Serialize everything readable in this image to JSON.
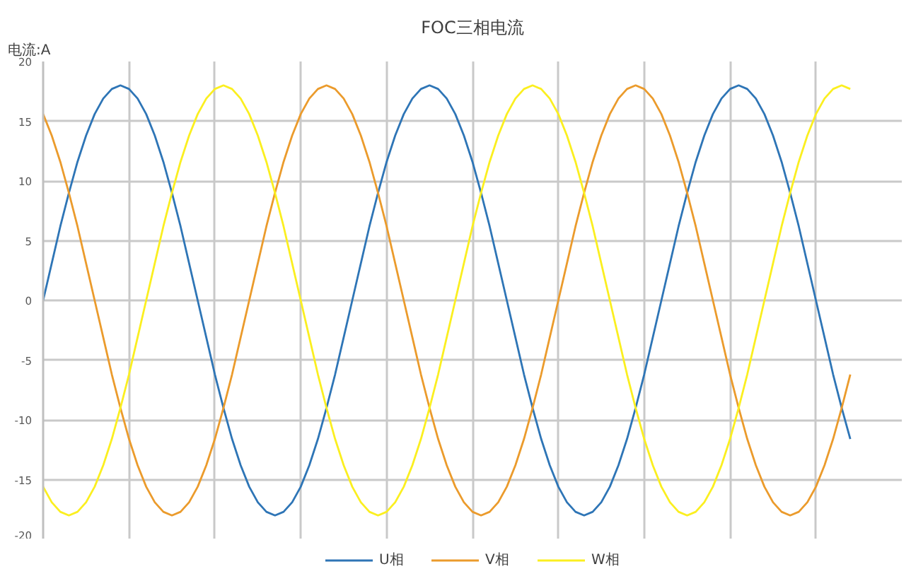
{
  "chart_data": {
    "type": "line",
    "title": "FOC三相电流",
    "ylabel": "电流:A",
    "categories": [
      null,
      null,
      null,
      null,
      null,
      null,
      null,
      null,
      null,
      null,
      null,
      null,
      null,
      null,
      null,
      null,
      null,
      null,
      null,
      null,
      null,
      null,
      null,
      null,
      null,
      null,
      null,
      null,
      null,
      null,
      null,
      null,
      null,
      null,
      null,
      null,
      null,
      null,
      null,
      null,
      null,
      null,
      null,
      null,
      null,
      null,
      null,
      null,
      null,
      null,
      null,
      null,
      null,
      null,
      null,
      null,
      null,
      null,
      null,
      null,
      null,
      null,
      null,
      null,
      null,
      null,
      null,
      null,
      null,
      null,
      null,
      null,
      null,
      null,
      null,
      null,
      null,
      null,
      null,
      null,
      null,
      null,
      null,
      null,
      null,
      null,
      null,
      null,
      null,
      null,
      null,
      null,
      null,
      null,
      null,
      null,
      null,
      null,
      null,
      null,
      null
    ],
    "series": [
      {
        "name": "U相",
        "color": "#2e75b6",
        "values": [
          0,
          3.1,
          6.2,
          9,
          11.6,
          13.8,
          15.6,
          16.9,
          17.7,
          18,
          17.7,
          16.9,
          15.6,
          13.8,
          11.6,
          9,
          6.2,
          3.1,
          0,
          -3.1,
          -6.2,
          -9,
          -11.6,
          -13.8,
          -15.6,
          -16.9,
          -17.7,
          -18,
          -17.7,
          -16.9,
          -15.6,
          -13.8,
          -11.6,
          -9,
          -6.2,
          -3.1,
          0,
          3.1,
          6.2,
          9,
          11.6,
          13.8,
          15.6,
          16.9,
          17.7,
          18,
          17.7,
          16.9,
          15.6,
          13.8,
          11.6,
          9,
          6.2,
          3.1,
          0,
          -3.1,
          -6.2,
          -9,
          -11.6,
          -13.8,
          -15.6,
          -16.9,
          -17.7,
          -18,
          -17.7,
          -16.9,
          -15.6,
          -13.8,
          -11.6,
          -9,
          -6.2,
          -3.1,
          0,
          3.1,
          6.2,
          9,
          11.6,
          13.8,
          15.6,
          16.9,
          17.7,
          18,
          17.7,
          16.9,
          15.6,
          13.8,
          11.6,
          9,
          6.2,
          3.1,
          0,
          -3.1,
          -6.2,
          -9,
          -11.6,
          null,
          null,
          null,
          null,
          null,
          null
        ]
      },
      {
        "name": "V相",
        "color": "#eb9b2c",
        "values": [
          15.6,
          13.8,
          11.6,
          9,
          6.2,
          3.1,
          0,
          -3.1,
          -6.2,
          -9,
          -11.6,
          -13.8,
          -15.6,
          -16.9,
          -17.7,
          -18,
          -17.7,
          -16.9,
          -15.6,
          -13.8,
          -11.6,
          -9,
          -6.2,
          -3.1,
          0,
          3.1,
          6.2,
          9,
          11.6,
          13.8,
          15.6,
          16.9,
          17.7,
          18,
          17.7,
          16.9,
          15.6,
          13.8,
          11.6,
          9,
          6.2,
          3.1,
          0,
          -3.1,
          -6.2,
          -9,
          -11.6,
          -13.8,
          -15.6,
          -16.9,
          -17.7,
          -18,
          -17.7,
          -16.9,
          -15.6,
          -13.8,
          -11.6,
          -9,
          -6.2,
          -3.1,
          0,
          3.1,
          6.2,
          9,
          11.6,
          13.8,
          15.6,
          16.9,
          17.7,
          18,
          17.7,
          16.9,
          15.6,
          13.8,
          11.6,
          9,
          6.2,
          3.1,
          0,
          -3.1,
          -6.2,
          -9,
          -11.6,
          -13.8,
          -15.6,
          -16.9,
          -17.7,
          -18,
          -17.7,
          -16.9,
          -15.6,
          -13.8,
          -11.6,
          -9,
          -6.2,
          null,
          null,
          null,
          null,
          null,
          null
        ]
      },
      {
        "name": "W相",
        "color": "#fbef20",
        "values": [
          -15.6,
          -16.9,
          -17.7,
          -18,
          -17.7,
          -16.9,
          -15.6,
          -13.8,
          -11.6,
          -9,
          -6.2,
          -3.1,
          0,
          3.1,
          6.2,
          9,
          11.6,
          13.8,
          15.6,
          16.9,
          17.7,
          18,
          17.7,
          16.9,
          15.6,
          13.8,
          11.6,
          9,
          6.2,
          3.1,
          0,
          -3.1,
          -6.2,
          -9,
          -11.6,
          -13.8,
          -15.6,
          -16.9,
          -17.7,
          -18,
          -17.7,
          -16.9,
          -15.6,
          -13.8,
          -11.6,
          -9,
          -6.2,
          -3.1,
          0,
          3.1,
          6.2,
          9,
          11.6,
          13.8,
          15.6,
          16.9,
          17.7,
          18,
          17.7,
          16.9,
          15.6,
          13.8,
          11.6,
          9,
          6.2,
          3.1,
          0,
          -3.1,
          -6.2,
          -9,
          -11.6,
          -13.8,
          -15.6,
          -16.9,
          -17.7,
          -18,
          -17.7,
          -16.9,
          -15.6,
          -13.8,
          -11.6,
          -9,
          -6.2,
          -3.1,
          0,
          3.1,
          6.2,
          9,
          11.6,
          13.8,
          15.6,
          16.9,
          17.7,
          18,
          17.7,
          null,
          null,
          null,
          null,
          null,
          null
        ]
      }
    ],
    "ylim": [
      -20,
      20
    ],
    "yticks": [
      -20,
      -15,
      -10,
      -5,
      0,
      5,
      10,
      15,
      20
    ],
    "grid": true,
    "legend": "bottom",
    "marker": "none",
    "line_style": "solid"
  }
}
